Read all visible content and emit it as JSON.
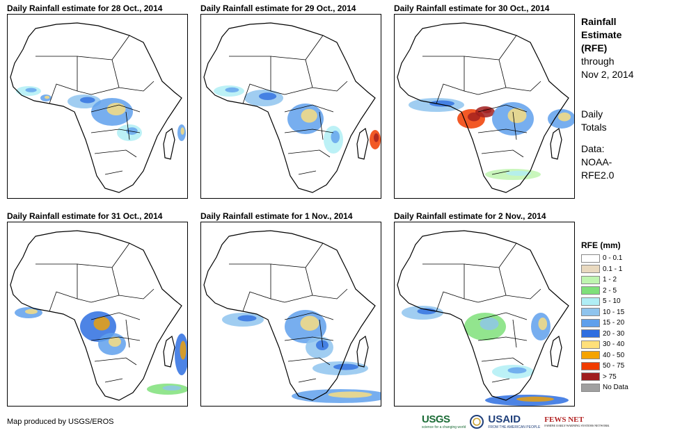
{
  "panels": [
    {
      "title": "Daily Rainfall estimate for 28 Oct., 2014"
    },
    {
      "title": "Daily Rainfall estimate for 29 Oct., 2014"
    },
    {
      "title": "Daily Rainfall estimate for 30 Oct., 2014"
    },
    {
      "title": "Daily Rainfall estimate for 31 Oct., 2014"
    },
    {
      "title": "Daily Rainfall estimate for 1 Nov., 2014"
    },
    {
      "title": "Daily Rainfall estimate for 2 Nov., 2014"
    }
  ],
  "sidebar": {
    "title_line1": "Rainfall",
    "title_line2": "Estimate",
    "title_line3": "(RFE)",
    "through_line1": "through",
    "through_line2": "Nov 2, 2014",
    "daily_line1": "Daily",
    "daily_line2": "Totals",
    "data_line1": "Data:",
    "data_line2": "NOAA-",
    "data_line3": "RFE2.0"
  },
  "legend": {
    "title": "RFE (mm)",
    "items": [
      {
        "label": "0 - 0.1",
        "color": "#ffffff"
      },
      {
        "label": "0.1 - 1",
        "color": "#e9d9bf"
      },
      {
        "label": "1 - 2",
        "color": "#bff5b0"
      },
      {
        "label": "2 - 5",
        "color": "#7fe07a"
      },
      {
        "label": "5 - 10",
        "color": "#b0eef5"
      },
      {
        "label": "10 - 15",
        "color": "#8fc4ee"
      },
      {
        "label": "15 - 20",
        "color": "#5fa0ec"
      },
      {
        "label": "20 - 30",
        "color": "#2e6ee0"
      },
      {
        "label": "30 - 40",
        "color": "#ffe07a"
      },
      {
        "label": "40 - 50",
        "color": "#f5a300"
      },
      {
        "label": "50 - 75",
        "color": "#f03c00"
      },
      {
        "label": "> 75",
        "color": "#a01e1e"
      },
      {
        "label": "No Data",
        "color": "#a0a0a0"
      }
    ]
  },
  "credit": "Map produced by USGS/EROS",
  "logos": {
    "usgs": "USGS",
    "usgs_tagline": "science for a changing world",
    "usaid": "USAID",
    "usaid_tagline": "FROM THE AMERICAN PEOPLE",
    "fews": "FEWS NET",
    "fews_tagline": "FAMINE EARLY WARNING SYSTEMS NETWORK"
  }
}
